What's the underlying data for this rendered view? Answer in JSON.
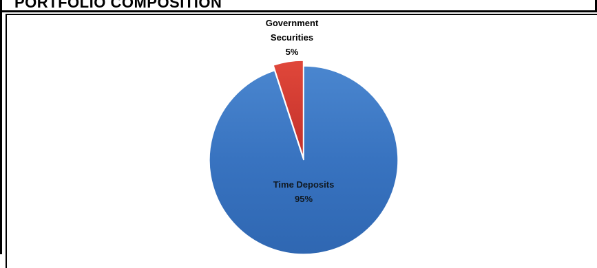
{
  "page": {
    "title": "PORTFOLIO COMPOSITION"
  },
  "chart_data": {
    "type": "pie",
    "title": "",
    "slices": [
      {
        "label": "Government Securities",
        "label_lines": [
          "Government",
          "Securities"
        ],
        "value": 5,
        "value_label": "5%",
        "color": "#d43a2f"
      },
      {
        "label": "Time Deposits",
        "label_lines": [
          "Time Deposits"
        ],
        "value": 95,
        "value_label": "95%",
        "color": "#3b78c4"
      }
    ],
    "start": "12 o'clock",
    "direction": "counter-clockwise from top for first slice",
    "legend": "none",
    "labels": "data labels with category name and percentage"
  }
}
